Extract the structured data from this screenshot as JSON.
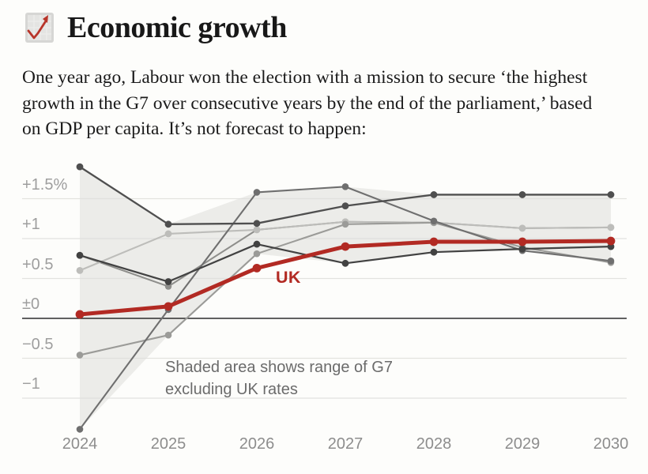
{
  "header": {
    "title": "Economic growth",
    "icon": "line-chart-icon"
  },
  "intro": {
    "text": "One year ago, Labour won the election with a mission to secure ‘the highest growth in the G7 over consecutive years by the end of the parliament,’ based on GDP per capita. It’s not forecast to happen:"
  },
  "chart_data": {
    "type": "line",
    "title": "Economic growth",
    "xlabel": "",
    "ylabel": "",
    "x": [
      2024,
      2025,
      2026,
      2027,
      2028,
      2029,
      2030
    ],
    "ylim": [
      -1.5,
      2.0
    ],
    "grid": true,
    "legend": "none",
    "yticks": [
      {
        "v": 1.5,
        "label": "+1.5%"
      },
      {
        "v": 1.0,
        "label": "+1"
      },
      {
        "v": 0.5,
        "label": "+0.5"
      },
      {
        "v": 0.0,
        "label": "±0"
      },
      {
        "v": -0.5,
        "label": "−0.5"
      },
      {
        "v": -1.0,
        "label": "−1"
      }
    ],
    "series": [
      {
        "name": "g7-unlabelled-1",
        "highlight": false,
        "color": "#8e8e8b",
        "width": 2.0,
        "dot": 4.2,
        "values": [
          0.79,
          0.4,
          1.11,
          1.21,
          1.2,
          1.13,
          1.14
        ]
      },
      {
        "name": "g7-unlabelled-2",
        "highlight": false,
        "color": "#bdbdba",
        "width": 2.1,
        "dot": 4.4,
        "values": [
          0.6,
          1.06,
          1.11,
          1.21,
          1.2,
          1.13,
          1.14
        ]
      },
      {
        "name": "g7-unlabelled-3",
        "highlight": false,
        "color": "#9b9b98",
        "width": 2.1,
        "dot": 4.3,
        "values": [
          -0.46,
          -0.21,
          0.81,
          1.18,
          1.2,
          0.89,
          0.7
        ]
      },
      {
        "name": "g7-unlabelled-4",
        "highlight": false,
        "color": "#6f6f6f",
        "width": 2.1,
        "dot": 4.3,
        "values": [
          -1.39,
          0.11,
          1.58,
          1.65,
          1.22,
          0.85,
          0.72
        ]
      },
      {
        "name": "g7-unlabelled-5",
        "highlight": false,
        "color": "#4f4f4f",
        "width": 2.3,
        "dot": 4.4,
        "values": [
          1.9,
          1.18,
          1.19,
          1.41,
          1.55,
          1.55,
          1.55
        ]
      },
      {
        "name": "g7-unlabelled-6",
        "highlight": false,
        "color": "#424242",
        "width": 2.2,
        "dot": 4.4,
        "values": [
          0.79,
          0.46,
          0.93,
          0.69,
          0.83,
          0.87,
          0.9
        ]
      },
      {
        "name": "UK",
        "highlight": true,
        "color": "#b22a23",
        "width": 5,
        "dot": 5.4,
        "values": [
          0.05,
          0.15,
          0.63,
          0.9,
          0.96,
          0.96,
          0.97
        ]
      }
    ],
    "band": {
      "description": "min-max range of G7 series excluding UK",
      "color": "#dfdfdb",
      "opacity": 0.55
    },
    "annotations": {
      "uk_label": "UK",
      "band_note_line1": "Shaded area shows range of G7",
      "band_note_line2": "excluding UK rates"
    },
    "style": {
      "grid_color": "#e3e3df",
      "zero_line_color": "#2c2c2c",
      "ytick_color": "#9e9e9e",
      "xtick_color": "#8d8d8d",
      "background": "#fdfdfb"
    }
  }
}
